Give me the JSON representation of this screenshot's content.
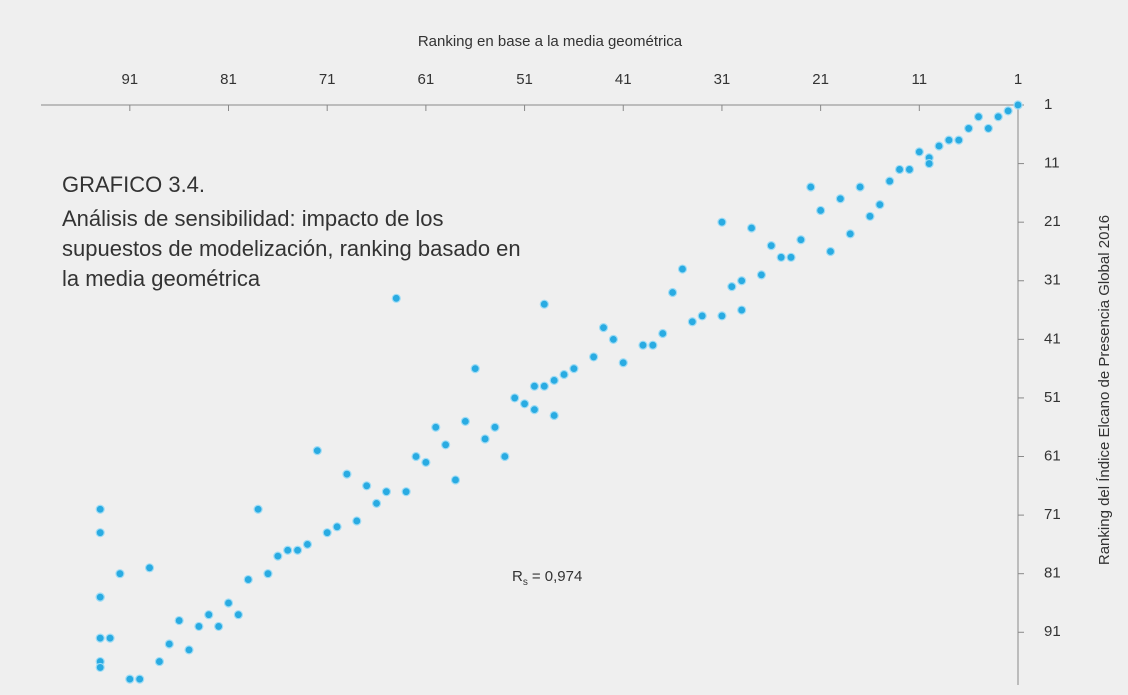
{
  "chart_data": {
    "type": "scatter",
    "title": "GRAFICO 3.4.",
    "subtitle_lines": [
      "Análisis de sensibilidad: impacto de los",
      "supuestos de modelización, ranking basado en",
      "la media geométrica"
    ],
    "xlabel": "Ranking en base a la media geométrica",
    "ylabel": "Ranking del Índice Elcano de Presencia Global 2016",
    "annotation": {
      "symbol": "R",
      "subscript": "s",
      "text": "= 0,974"
    },
    "color": "#29abe2",
    "xlim": [
      100,
      1
    ],
    "ylim": [
      1,
      100
    ],
    "xticks": [
      91,
      81,
      71,
      61,
      51,
      41,
      31,
      21,
      11,
      1
    ],
    "yticks": [
      1,
      11,
      21,
      31,
      41,
      51,
      61,
      71,
      81,
      91
    ],
    "x": [
      1,
      2,
      3,
      4,
      5,
      6,
      7,
      8,
      9,
      10,
      11,
      10,
      12,
      13,
      14,
      15,
      16,
      17,
      18,
      19,
      20,
      21,
      22,
      23,
      24,
      25,
      26,
      27,
      29,
      30,
      31,
      28,
      29,
      31,
      33,
      34,
      35,
      36,
      37,
      38,
      39,
      41,
      42,
      43,
      44,
      46,
      47,
      48,
      49,
      50,
      48,
      49,
      50,
      51,
      52,
      53,
      54,
      55,
      56,
      57,
      58,
      59,
      60,
      61,
      62,
      63,
      64,
      65,
      66,
      67,
      68,
      69,
      70,
      71,
      72,
      73,
      74,
      75,
      76,
      77,
      78,
      79,
      80,
      81,
      82,
      83,
      84,
      85,
      86,
      87,
      88,
      89,
      90,
      91,
      92,
      93,
      94,
      94,
      94,
      94,
      94,
      94,
      94
    ],
    "y": [
      1,
      2,
      3,
      5,
      3,
      5,
      7,
      7,
      8,
      10,
      9,
      11,
      12,
      12,
      14,
      18,
      20,
      15,
      23,
      17,
      26,
      19,
      15,
      24,
      27,
      27,
      25,
      30,
      31,
      32,
      21,
      22,
      36,
      37,
      37,
      38,
      29,
      33,
      40,
      42,
      42,
      45,
      41,
      39,
      44,
      46,
      47,
      48,
      49,
      49,
      54,
      35,
      53,
      52,
      51,
      61,
      56,
      58,
      46,
      55,
      65,
      59,
      56,
      62,
      61,
      67,
      34,
      67,
      69,
      66,
      72,
      64,
      73,
      74,
      60,
      76,
      77,
      77,
      78,
      81,
      70,
      82,
      88,
      86,
      90,
      88,
      90,
      94,
      89,
      93,
      96,
      80,
      99,
      99,
      81,
      92,
      92,
      96,
      97,
      85,
      85,
      74,
      70
    ]
  }
}
